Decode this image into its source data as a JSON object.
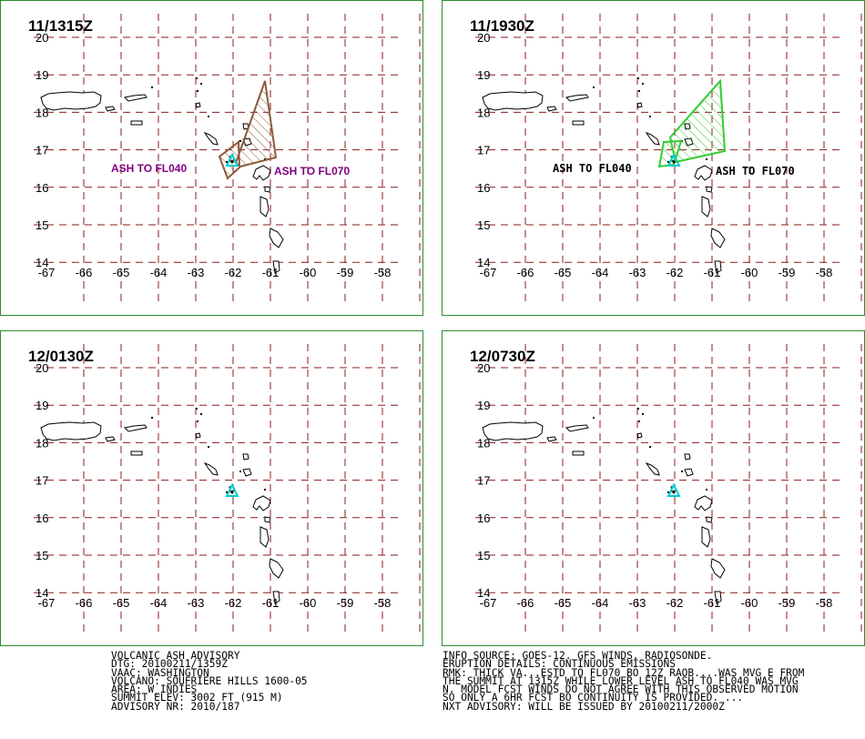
{
  "panels": [
    {
      "title": "11/1315Z",
      "labels": [
        {
          "text": "ASH TO FL040",
          "color": "#800080",
          "font": "sans"
        },
        {
          "text": "ASH TO FL070",
          "color": "#800080",
          "font": "sans"
        }
      ],
      "polyColor": "#8b5a3c"
    },
    {
      "title": "11/1930Z",
      "labels": [
        {
          "text": "ASH TO FL040",
          "color": "#000000",
          "font": "mono"
        },
        {
          "text": "ASH TO FL070",
          "color": "#000000",
          "font": "mono"
        }
      ],
      "polyColor": "#33cc33"
    },
    {
      "title": "12/0130Z",
      "labels": [],
      "polyColor": null
    },
    {
      "title": "12/0730Z",
      "labels": [],
      "polyColor": null
    }
  ],
  "y_axis_labels": [
    "20",
    "19",
    "18",
    "17",
    "16",
    "15",
    "14"
  ],
  "x_axis_labels": [
    "-67",
    "-66",
    "-65",
    "-64",
    "-63",
    "-62",
    "-61",
    "-60",
    "-59",
    "-58"
  ],
  "colors": {
    "grid": "#8b1a1a",
    "border": "#2e8b2e",
    "volcano": "#00cccc"
  },
  "footer_left": [
    "VOLCANIC ASH ADVISORY",
    "DTG: 20100211/1359Z",
    "VAAC: WASHINGTON",
    "VOLCANO: SOUFRIERE HILLS 1600-05",
    "AREA: W_INDIES",
    "SUMMIT ELEV: 3002 FT (915 M)",
    "ADVISORY NR: 2010/187"
  ],
  "footer_right": [
    "INFO SOURCE: GOES-12. GFS WINDS. RADIOSONDE.",
    "ERUPTION DETAILS: CONTINUOUS EMISSIONS",
    "RMK: THICK VA...ESTD TO FL070 BO 12Z RAOB....WAS MVG E FROM",
    "THE SUMMIT AT 1315Z WHILE LOWER LEVEL ASH TO FL040 WAS MVG",
    "N. MODEL FCST WINDS DO NOT AGREE WITH THIS OBSERVED MOTION",
    "SO ONLY A 6HR FCST BO CONTINUITY IS PROVIDED. ...",
    "NXT ADVISORY: WILL BE ISSUED BY 20100211/2000Z"
  ]
}
